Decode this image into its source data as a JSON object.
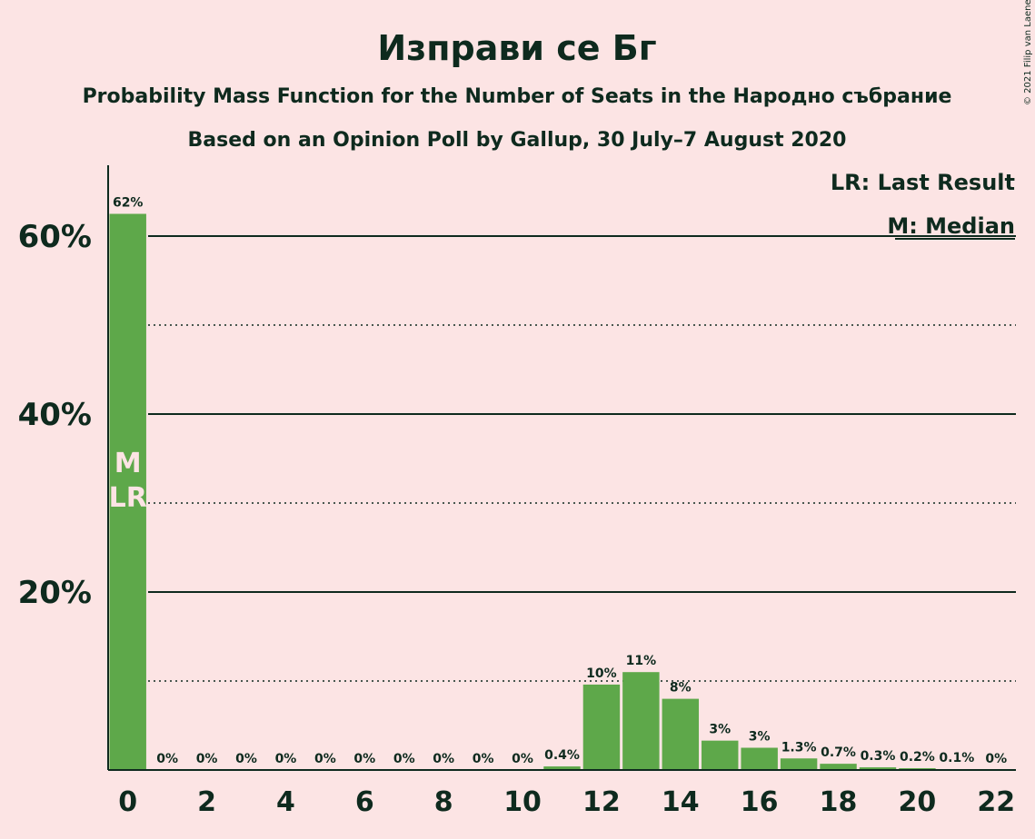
{
  "header": {
    "title": "Изправи се Бг",
    "subtitle": "Probability Mass Function for the Number of Seats in the Народно събрание",
    "subtitle2": "Based on an Opinion Poll by Gallup, 30 July–7 August 2020",
    "copyright": "© 2021 Filip van Laenen"
  },
  "legend": {
    "last_result": "LR: Last Result",
    "median": "M: Median"
  },
  "colors": {
    "background": "#fce4e4",
    "bar": "#5ea84a",
    "text": "#0e2a1e"
  },
  "chart_data": {
    "type": "bar",
    "x": [
      0,
      1,
      2,
      3,
      4,
      5,
      6,
      7,
      8,
      9,
      10,
      11,
      12,
      13,
      14,
      15,
      16,
      17,
      18,
      19,
      20,
      21,
      22
    ],
    "values": [
      62.5,
      0,
      0,
      0,
      0,
      0,
      0,
      0,
      0,
      0,
      0,
      0.4,
      9.6,
      11,
      8,
      3.3,
      2.5,
      1.3,
      0.7,
      0.3,
      0.2,
      0.1,
      0
    ],
    "data_labels": [
      "62%",
      "0%",
      "0%",
      "0%",
      "0%",
      "0%",
      "0%",
      "0%",
      "0%",
      "0%",
      "0%",
      "0.4%",
      "10%",
      "11%",
      "8%",
      "3%",
      "3%",
      "1.3%",
      "0.7%",
      "0.3%",
      "0.2%",
      "0.1%",
      "0%"
    ],
    "x_ticks": [
      "0",
      "2",
      "4",
      "6",
      "8",
      "10",
      "12",
      "14",
      "16",
      "18",
      "20",
      "22"
    ],
    "y_ticks": [
      {
        "value": 20,
        "label": "20%"
      },
      {
        "value": 40,
        "label": "40%"
      },
      {
        "value": 60,
        "label": "60%"
      }
    ],
    "ylim": [
      0,
      68
    ],
    "xlim": [
      -0.5,
      22.5
    ],
    "grid": "solid major lines at 20/40/60, dotted minor lines at 10/30/50",
    "median": {
      "seat": 0,
      "label": "M"
    },
    "last_result": {
      "seat": 0,
      "label": "LR"
    },
    "legend_position": "top-right"
  }
}
